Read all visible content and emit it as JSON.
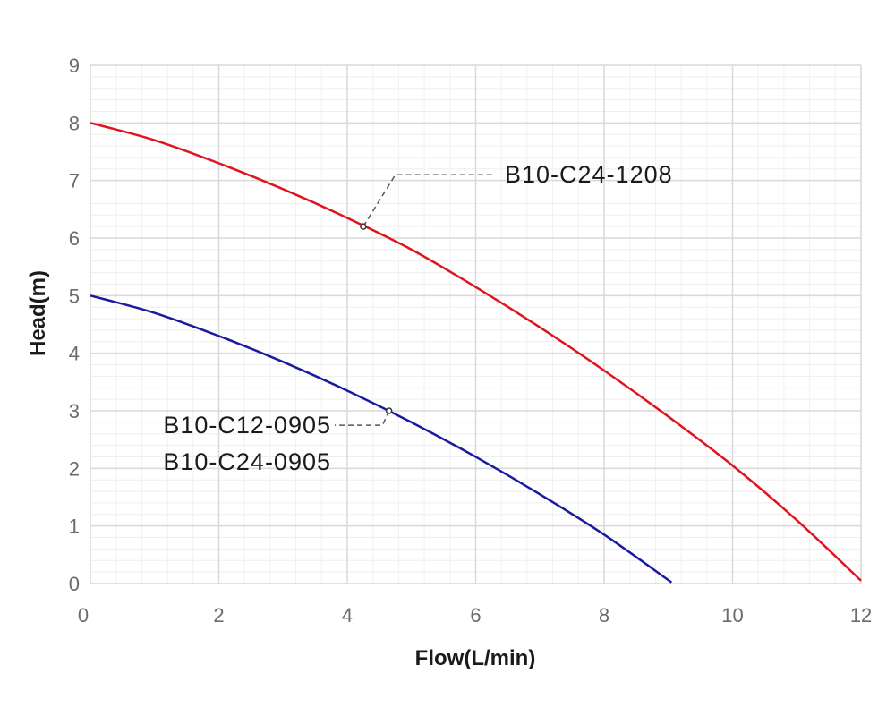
{
  "chart_data": {
    "type": "line",
    "title": "",
    "xlabel": "Flow(L/min)",
    "ylabel": "Head(m)",
    "xlim": [
      0,
      12
    ],
    "ylim": [
      0,
      9
    ],
    "xticks": [
      0,
      2,
      4,
      6,
      8,
      10,
      12
    ],
    "yticks": [
      0,
      1,
      2,
      3,
      4,
      5,
      6,
      7,
      8,
      9
    ],
    "grid": true,
    "legend": "none",
    "series": [
      {
        "color": "#e0141e",
        "x": [
          0,
          1,
          2,
          3,
          4,
          5,
          6,
          7,
          8,
          9,
          10,
          11,
          12
        ],
        "y": [
          8.0,
          7.7,
          7.3,
          6.85,
          6.35,
          5.8,
          5.15,
          4.45,
          3.7,
          2.9,
          2.05,
          1.1,
          0.05
        ]
      },
      {
        "color": "#1a1aa0",
        "x": [
          0,
          1,
          2,
          3,
          4,
          5,
          6,
          7,
          8,
          9.05
        ],
        "y": [
          5.0,
          4.7,
          4.3,
          3.85,
          3.35,
          2.8,
          2.2,
          1.55,
          0.85,
          0.02
        ]
      }
    ],
    "annotations": [
      {
        "series": 0,
        "point": [
          4.25,
          6.2
        ],
        "elbow": [
          4.75,
          7.1
        ],
        "lines": [
          "B10-C24-1208"
        ]
      },
      {
        "series": 1,
        "point": [
          4.65,
          3.0
        ],
        "elbow": [
          4.55,
          2.75
        ],
        "lines": [
          "B10-C12-0905",
          "B10-C24-0905"
        ]
      }
    ]
  }
}
